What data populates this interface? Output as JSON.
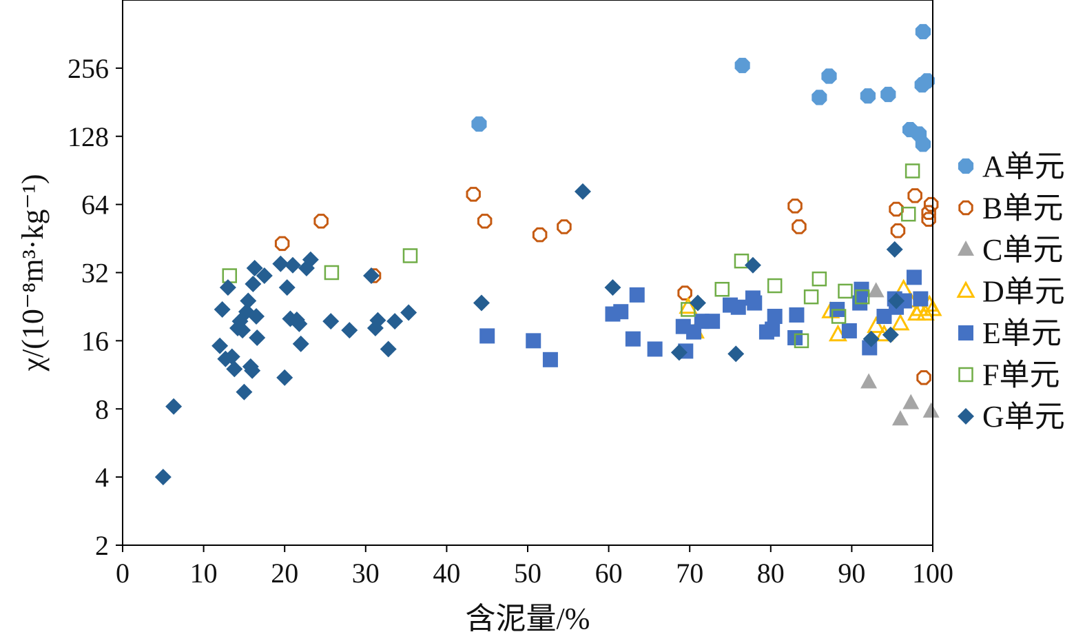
{
  "chart_data": {
    "type": "scatter",
    "xlabel": "含泥量/%",
    "ylabel": "χ/(10⁻⁸m³·kg⁻¹)",
    "xlim": [
      0,
      100
    ],
    "ylim": [
      2,
      512
    ],
    "yscale": "log2",
    "xticks": [
      "0",
      "10",
      "20",
      "30",
      "40",
      "50",
      "60",
      "70",
      "80",
      "90",
      "100"
    ],
    "yticks": [
      "2",
      "4",
      "8",
      "16",
      "32",
      "64",
      "128",
      "256"
    ],
    "grid": false,
    "legend_position": "right",
    "series": [
      {
        "name": "A单元",
        "marker": "filled-octagon",
        "color": "#5b9bd5",
        "points": [
          [
            44.0,
            145
          ],
          [
            76.5,
            263
          ],
          [
            87.2,
            236
          ],
          [
            86.0,
            190
          ],
          [
            92.0,
            193
          ],
          [
            94.5,
            196
          ],
          [
            97.2,
            137
          ],
          [
            98.3,
            131
          ],
          [
            98.8,
            118
          ],
          [
            98.8,
            371
          ],
          [
            98.7,
            216
          ],
          [
            99.3,
            225
          ]
        ]
      },
      {
        "name": "B单元",
        "marker": "hollow-octagon",
        "color": "#c55a11",
        "points": [
          [
            19.7,
            43
          ],
          [
            24.5,
            54
          ],
          [
            31.0,
            31
          ],
          [
            43.3,
            71
          ],
          [
            44.7,
            54
          ],
          [
            51.5,
            47
          ],
          [
            54.5,
            51
          ],
          [
            69.4,
            26
          ],
          [
            83.0,
            63
          ],
          [
            83.5,
            51
          ],
          [
            95.5,
            61
          ],
          [
            95.7,
            49
          ],
          [
            97.8,
            70
          ],
          [
            99.5,
            59
          ],
          [
            99.8,
            64
          ],
          [
            99.5,
            55
          ],
          [
            98.9,
            11
          ]
        ]
      },
      {
        "name": "C单元",
        "marker": "filled-triangle",
        "color": "#a5a5a5",
        "points": [
          [
            92.1,
            10.5
          ],
          [
            93.0,
            26.5
          ],
          [
            96.0,
            7.2
          ],
          [
            97.3,
            8.5
          ],
          [
            99.8,
            7.8
          ]
        ]
      },
      {
        "name": "D单元",
        "marker": "hollow-triangle",
        "color": "#ffc000",
        "points": [
          [
            69.8,
            22.5
          ],
          [
            70.7,
            17.5
          ],
          [
            87.4,
            21.5
          ],
          [
            88.3,
            17.0
          ],
          [
            93.0,
            18.5
          ],
          [
            94.0,
            17.0
          ],
          [
            96.0,
            19.0
          ],
          [
            96.4,
            27.0
          ],
          [
            97.2,
            24.0
          ],
          [
            98.0,
            21.0
          ],
          [
            98.4,
            22.0
          ],
          [
            99.1,
            21.0
          ],
          [
            99.6,
            23.0
          ],
          [
            100.0,
            22.0
          ]
        ]
      },
      {
        "name": "E单元",
        "marker": "filled-square",
        "color": "#4472c4",
        "points": [
          [
            45.0,
            16.8
          ],
          [
            50.7,
            16.0
          ],
          [
            52.8,
            13.2
          ],
          [
            60.5,
            21.0
          ],
          [
            61.5,
            21.5
          ],
          [
            63.0,
            16.3
          ],
          [
            63.5,
            25.5
          ],
          [
            65.7,
            14.7
          ],
          [
            69.2,
            18.5
          ],
          [
            69.5,
            14.4
          ],
          [
            70.5,
            17.5
          ],
          [
            71.5,
            19.5
          ],
          [
            72.8,
            19.5
          ],
          [
            75.0,
            23.0
          ],
          [
            76.0,
            22.5
          ],
          [
            77.8,
            24.7
          ],
          [
            78.0,
            23.5
          ],
          [
            79.5,
            17.5
          ],
          [
            80.2,
            18.0
          ],
          [
            80.5,
            20.5
          ],
          [
            83.0,
            16.5
          ],
          [
            83.2,
            20.8
          ],
          [
            88.2,
            22.0
          ],
          [
            89.7,
            17.7
          ],
          [
            91.0,
            23.5
          ],
          [
            91.2,
            27.0
          ],
          [
            92.2,
            14.9
          ],
          [
            94.0,
            20.5
          ],
          [
            95.3,
            24.5
          ],
          [
            95.5,
            22.5
          ],
          [
            96.5,
            24.0
          ],
          [
            97.7,
            30.5
          ],
          [
            98.5,
            24.5
          ]
        ]
      },
      {
        "name": "F单元",
        "marker": "hollow-square",
        "color": "#70ad47",
        "points": [
          [
            13.2,
            31
          ],
          [
            25.8,
            32
          ],
          [
            35.5,
            38
          ],
          [
            69.8,
            22
          ],
          [
            74.0,
            27
          ],
          [
            76.4,
            36
          ],
          [
            80.5,
            28
          ],
          [
            83.8,
            16
          ],
          [
            85.0,
            25
          ],
          [
            86.0,
            30
          ],
          [
            88.4,
            20.5
          ],
          [
            89.2,
            26.5
          ],
          [
            91.3,
            25
          ],
          [
            97.0,
            58
          ],
          [
            97.5,
            90
          ]
        ]
      },
      {
        "name": "G单元",
        "marker": "filled-diamond",
        "color": "#255e91",
        "points": [
          [
            5.0,
            4.0
          ],
          [
            6.3,
            8.2
          ],
          [
            12.0,
            15.2
          ],
          [
            12.3,
            22.0
          ],
          [
            12.7,
            13.3
          ],
          [
            13.0,
            27.5
          ],
          [
            13.5,
            13.6
          ],
          [
            13.8,
            12.0
          ],
          [
            14.2,
            18.2
          ],
          [
            14.5,
            19.5
          ],
          [
            14.8,
            17.8
          ],
          [
            15.0,
            9.5
          ],
          [
            15.3,
            21.5
          ],
          [
            15.5,
            24.0
          ],
          [
            15.8,
            12.3
          ],
          [
            16.0,
            11.8
          ],
          [
            16.1,
            28.5
          ],
          [
            16.3,
            33.5
          ],
          [
            16.5,
            20.5
          ],
          [
            16.6,
            16.5
          ],
          [
            17.5,
            31.0
          ],
          [
            19.5,
            35.0
          ],
          [
            20.0,
            11.0
          ],
          [
            20.3,
            27.5
          ],
          [
            20.7,
            20.0
          ],
          [
            21.0,
            34.5
          ],
          [
            21.5,
            19.8
          ],
          [
            21.8,
            19.0
          ],
          [
            22.0,
            15.5
          ],
          [
            22.7,
            33.5
          ],
          [
            23.2,
            36.5
          ],
          [
            25.7,
            19.5
          ],
          [
            28.0,
            17.8
          ],
          [
            30.7,
            31.0
          ],
          [
            31.2,
            18.2
          ],
          [
            31.5,
            19.7
          ],
          [
            32.8,
            14.7
          ],
          [
            33.6,
            19.5
          ],
          [
            35.3,
            21.3
          ],
          [
            44.3,
            23.5
          ],
          [
            56.8,
            73.0
          ],
          [
            60.5,
            27.5
          ],
          [
            68.7,
            14.2
          ],
          [
            71.0,
            23.5
          ],
          [
            75.7,
            14.0
          ],
          [
            77.8,
            34.5
          ],
          [
            92.4,
            16.3
          ],
          [
            94.8,
            17.0
          ],
          [
            95.3,
            40.5
          ],
          [
            95.5,
            24.0
          ]
        ]
      }
    ]
  }
}
